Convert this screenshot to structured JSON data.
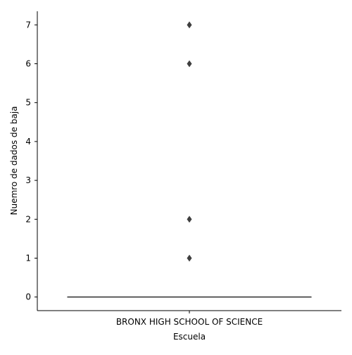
{
  "chart_data": {
    "type": "box",
    "xlabel": "Escuela",
    "ylabel": "Nuemro de dados de baja",
    "categories": [
      "BRONX HIGH SCHOOL OF SCIENCE"
    ],
    "ylim": [
      -0.35,
      7.35
    ],
    "yticks": [
      "0",
      "1",
      "2",
      "3",
      "4",
      "5",
      "6",
      "7"
    ],
    "box": {
      "min": 0,
      "q1": 0,
      "median": 0,
      "q3": 0,
      "max": 0
    },
    "outliers": [
      1,
      2,
      6,
      7
    ],
    "colors": {
      "box": "#3f3f3f",
      "outlier": "#3f3f3f",
      "axis": "#000000"
    },
    "grid": false,
    "legend": "none"
  }
}
